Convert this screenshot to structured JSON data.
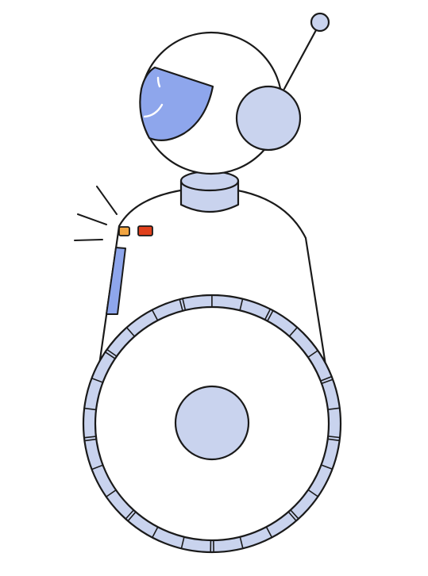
{
  "illustration": {
    "subject": "robot",
    "colors": {
      "background": "#ffffff",
      "outline": "#1a1a1a",
      "light_fill": "#c9d3ee",
      "accent_fill": "#8ea6ec",
      "body_fill": "#ffffff",
      "indicator_orange": "#f2a541",
      "indicator_red": "#e0401c"
    }
  }
}
